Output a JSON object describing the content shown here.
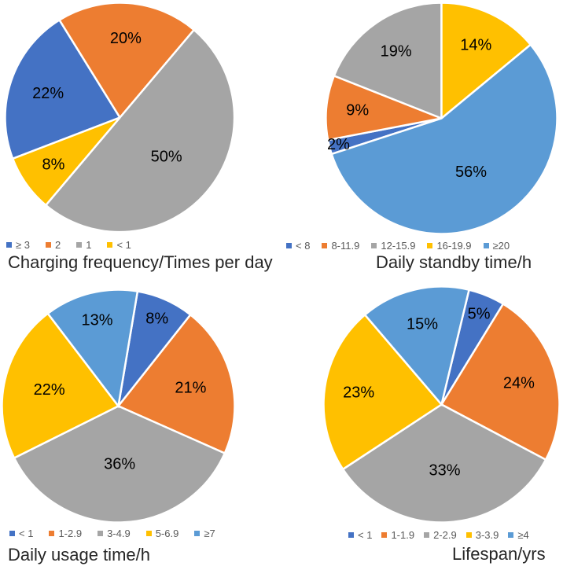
{
  "figure": {
    "description": "Four pie charts summarizing survey results",
    "background": "#ffffff"
  },
  "palette": {
    "blue": "#4472C4",
    "orange": "#ED7D31",
    "gray": "#A5A5A5",
    "yellow": "#FFC000",
    "light_blue": "#5B9BD5"
  },
  "styles": {
    "title_color": "#262626",
    "legend_text_color": "#595959",
    "data_label_color": "#000000",
    "slice_gap_color": "#ffffff"
  },
  "chart_data": [
    {
      "id": "charging-frequency",
      "type": "pie",
      "title": "Charging frequency/Times per day",
      "categories": [
        "≥ 3",
        "2",
        "1",
        "< 1"
      ],
      "values": [
        22,
        20,
        50,
        8
      ],
      "data_labels": [
        "22%",
        "20%",
        "50%",
        "8%"
      ],
      "color_keys": [
        "blue",
        "orange",
        "gray",
        "yellow"
      ],
      "start_angle_deg": 249,
      "direction": "clockwise",
      "legend_position": "bottom-left",
      "title_position": "bottom-left"
    },
    {
      "id": "daily-standby-time",
      "type": "pie",
      "title": "Daily standby time/h",
      "categories": [
        "< 8",
        "8-11.9",
        "12-15.9",
        "16-19.9",
        "≥20"
      ],
      "values": [
        2,
        9,
        19,
        14,
        56
      ],
      "data_labels": [
        "2%",
        "9%",
        "19%",
        "14%",
        "56%"
      ],
      "color_keys": [
        "blue",
        "orange",
        "gray",
        "yellow",
        "light_blue"
      ],
      "start_angle_deg": 252,
      "direction": "clockwise",
      "legend_position": "bottom",
      "title_position": "bottom-center"
    },
    {
      "id": "daily-usage-time",
      "type": "pie",
      "title": "Daily usage time/h",
      "categories": [
        "< 1",
        "1-2.9",
        "3-4.9",
        "5-6.9",
        "≥7"
      ],
      "values": [
        8,
        21,
        36,
        22,
        13
      ],
      "data_labels": [
        "8%",
        "21%",
        "36%",
        "22%",
        "13%"
      ],
      "color_keys": [
        "blue",
        "orange",
        "gray",
        "yellow",
        "light_blue"
      ],
      "start_angle_deg": 9.5,
      "direction": "clockwise",
      "legend_position": "bottom-left",
      "title_position": "bottom-left"
    },
    {
      "id": "lifespan",
      "type": "pie",
      "title": "Lifespan/yrs",
      "categories": [
        "< 1",
        "1-1.9",
        "2-2.9",
        "3-3.9",
        "≥4"
      ],
      "values": [
        5,
        24,
        33,
        23,
        15
      ],
      "data_labels": [
        "5%",
        "24%",
        "33%",
        "23%",
        "15%"
      ],
      "color_keys": [
        "blue",
        "orange",
        "gray",
        "yellow",
        "light_blue"
      ],
      "start_angle_deg": 13.5,
      "direction": "clockwise",
      "legend_position": "bottom-right",
      "title_position": "bottom-right"
    }
  ]
}
